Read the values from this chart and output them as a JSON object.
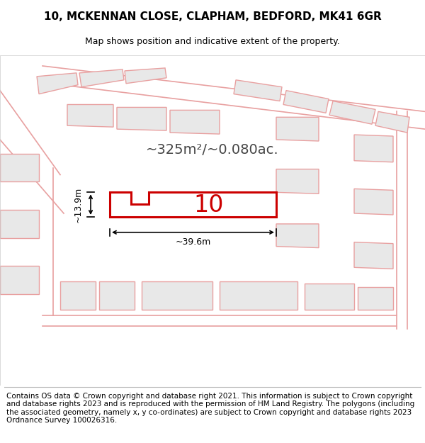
{
  "title_line1": "10, MCKENNAN CLOSE, CLAPHAM, BEDFORD, MK41 6GR",
  "title_line2": "Map shows position and indicative extent of the property.",
  "footer_text": "Contains OS data © Crown copyright and database right 2021. This information is subject to Crown copyright and database rights 2023 and is reproduced with the permission of HM Land Registry. The polygons (including the associated geometry, namely x, y co-ordinates) are subject to Crown copyright and database rights 2023 Ordnance Survey 100026316.",
  "area_text": "~325m²/~0.080ac.",
  "width_label": "~39.6m",
  "height_label": "~13.9m",
  "plot_number": "10",
  "bg_color": "#ffffff",
  "map_bg": "#f5f5f5",
  "plot_fill": "#ffffff",
  "plot_edge_color": "#cc0000",
  "neighbor_fill": "#e8e8e8",
  "neighbor_edge": "#e8a0a0",
  "road_color": "#e8a0a0",
  "dim_color": "#000000",
  "title_fontsize": 11,
  "subtitle_fontsize": 9,
  "footer_fontsize": 7.5
}
